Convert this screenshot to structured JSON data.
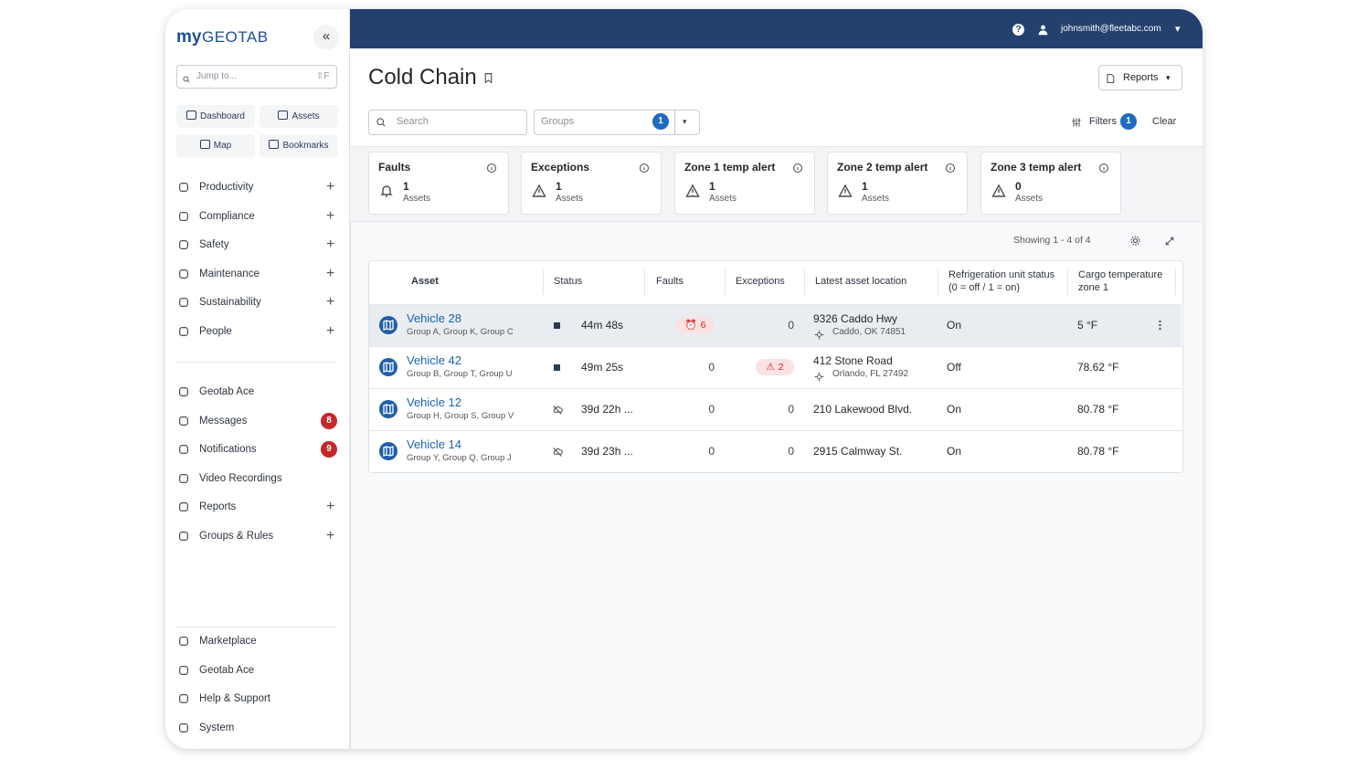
{
  "sidebar": {
    "logo": {
      "prefix": "my",
      "name": "GEOTAB"
    },
    "collapse": "«",
    "search": {
      "placeholder": "Jump to...",
      "shortcut": "⇧F"
    },
    "quick_links": [
      "Dashboard",
      "Assets",
      "Map",
      "Bookmarks"
    ],
    "nav": [
      {
        "label": "Productivity",
        "expand": "+"
      },
      {
        "label": "Compliance",
        "expand": "+"
      },
      {
        "label": "Safety",
        "expand": "+"
      },
      {
        "label": "Maintenance",
        "expand": "+"
      },
      {
        "label": "Sustainability",
        "expand": "+"
      },
      {
        "label": "People",
        "expand": "+"
      }
    ],
    "nav2": [
      {
        "label": "Geotab Ace"
      },
      {
        "label": "Messages",
        "badge": 8
      },
      {
        "label": "Notifications",
        "badge": 9
      },
      {
        "label": "Video Recordings"
      },
      {
        "label": "Reports",
        "expand": "+"
      },
      {
        "label": "Groups & Rules",
        "expand": "+"
      }
    ],
    "bottom": [
      "Marketplace",
      "Geotab Ace",
      "Help & Support",
      "System"
    ]
  },
  "topbar": {
    "help": "?",
    "user": "johnsmith@fleetabc.com",
    "caret": "▾"
  },
  "header": {
    "title": "Cold Chain",
    "reports_button": "Reports"
  },
  "toolbar": {
    "search": "Search",
    "groups": "Groups",
    "groups_badge": 1,
    "filters": "Filters",
    "filters_badge": 1,
    "clear": "Clear"
  },
  "cards": [
    {
      "title": "Faults",
      "count": 1,
      "unit": "Assets"
    },
    {
      "title": "Exceptions",
      "count": 1,
      "unit": "Assets"
    },
    {
      "title": "Zone 1 temp alert",
      "count": 1,
      "unit": "Assets"
    },
    {
      "title": "Zone 2 temp alert",
      "count": 1,
      "unit": "Assets"
    },
    {
      "title": "Zone 3 temp alert",
      "count": 0,
      "unit": "Assets"
    }
  ],
  "showing": "Showing 1 - 4 of 4",
  "table": {
    "columns": [
      "Asset",
      "Status",
      "Faults",
      "Exceptions",
      "Latest asset location",
      "Refrigeration unit status (0 = off / 1 = on)",
      "Cargo temperature zone 1"
    ],
    "rows": [
      {
        "name": "Vehicle 28",
        "groups": "Group A, Group K, Group C",
        "status": "44m 48s",
        "faults": 6,
        "exceptions": 0,
        "location": "9326 Caddo Hwy",
        "city": "Caddo, OK 74851",
        "refrigeration": "On",
        "temperature": "5 °F"
      },
      {
        "name": "Vehicle 42",
        "groups": "Group B, Group T, Group U",
        "status": "49m 25s",
        "faults": 0,
        "exceptions": 2,
        "location": "412 Stone Road",
        "city": "Orlando, FL 27492",
        "refrigeration": "Off",
        "temperature": "78.62 °F"
      },
      {
        "name": "Vehicle 12",
        "groups": "Group H, Group S, Group V",
        "status": "39d 22h ...",
        "faults": 0,
        "exceptions": 0,
        "location": "210 Lakewood Blvd.",
        "refrigeration": "On",
        "temperature": "80.78 °F"
      },
      {
        "name": "Vehicle 14",
        "groups": "Group Y, Group Q, Group J",
        "status": "39d 23h ...",
        "faults": 0,
        "exceptions": 0,
        "location": "2915 Calmway St.",
        "refrigeration": "On",
        "temperature": "80.78 °F"
      }
    ]
  }
}
